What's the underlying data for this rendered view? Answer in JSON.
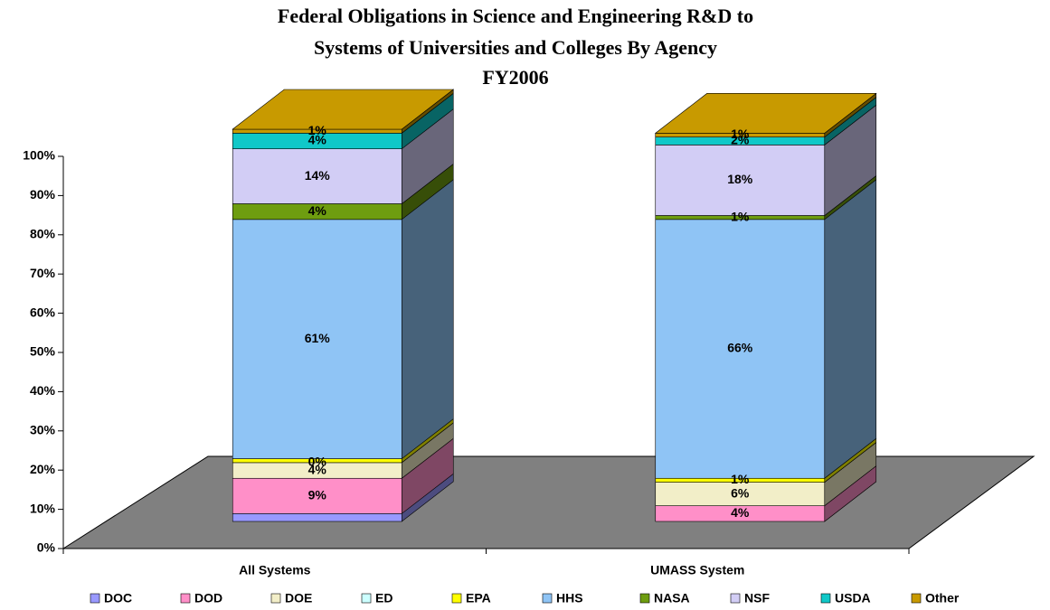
{
  "chart_data": {
    "type": "bar3d-stacked",
    "title": [
      "Federal Obligations in Science and Engineering R&D to",
      "Systems of Universities and Colleges By Agency",
      "FY2006"
    ],
    "categories": [
      "All Systems",
      "UMASS System"
    ],
    "ylim": [
      0,
      100
    ],
    "yticks": [
      {
        "value": 0,
        "label": "0%"
      },
      {
        "value": 10,
        "label": "10%"
      },
      {
        "value": 20,
        "label": "20%"
      },
      {
        "value": 30,
        "label": "30%"
      },
      {
        "value": 40,
        "label": "40%"
      },
      {
        "value": 50,
        "label": "50%"
      },
      {
        "value": 60,
        "label": "60%"
      },
      {
        "value": 70,
        "label": "70%"
      },
      {
        "value": 80,
        "label": "80%"
      },
      {
        "value": 90,
        "label": "90%"
      },
      {
        "value": 100,
        "label": "100%"
      }
    ],
    "legend": "bottom",
    "series": [
      {
        "name": "DOC",
        "color": "#9999ff",
        "values": [
          2,
          0
        ],
        "value_labels": [
          null,
          null
        ]
      },
      {
        "name": "DOD",
        "color": "#ff8fc8",
        "values": [
          9,
          4
        ],
        "value_labels": [
          "9%",
          "4%"
        ]
      },
      {
        "name": "DOE",
        "color": "#f2eec8",
        "values": [
          4,
          6
        ],
        "value_labels": [
          "4%",
          "6%"
        ]
      },
      {
        "name": "ED",
        "color": "#ccffff",
        "values": [
          0,
          0
        ],
        "value_labels": [
          "0%",
          null
        ]
      },
      {
        "name": "EPA",
        "color": "#ffff00",
        "values": [
          1,
          1
        ],
        "value_labels": [
          null,
          "1%"
        ]
      },
      {
        "name": "HHS",
        "color": "#8fc4f5",
        "values": [
          61,
          66
        ],
        "value_labels": [
          "61%",
          "66%"
        ]
      },
      {
        "name": "NASA",
        "color": "#6e9d10",
        "values": [
          4,
          1
        ],
        "value_labels": [
          "4%",
          "1%"
        ]
      },
      {
        "name": "NSF",
        "color": "#d2cdf5",
        "values": [
          14,
          18
        ],
        "value_labels": [
          "14%",
          "18%"
        ]
      },
      {
        "name": "USDA",
        "color": "#10c8c8",
        "values": [
          4,
          2
        ],
        "value_labels": [
          "4%",
          "2%"
        ]
      },
      {
        "name": "Other",
        "color": "#c89a00",
        "values": [
          1,
          1
        ],
        "value_labels": [
          "1%",
          "1%"
        ]
      }
    ]
  }
}
